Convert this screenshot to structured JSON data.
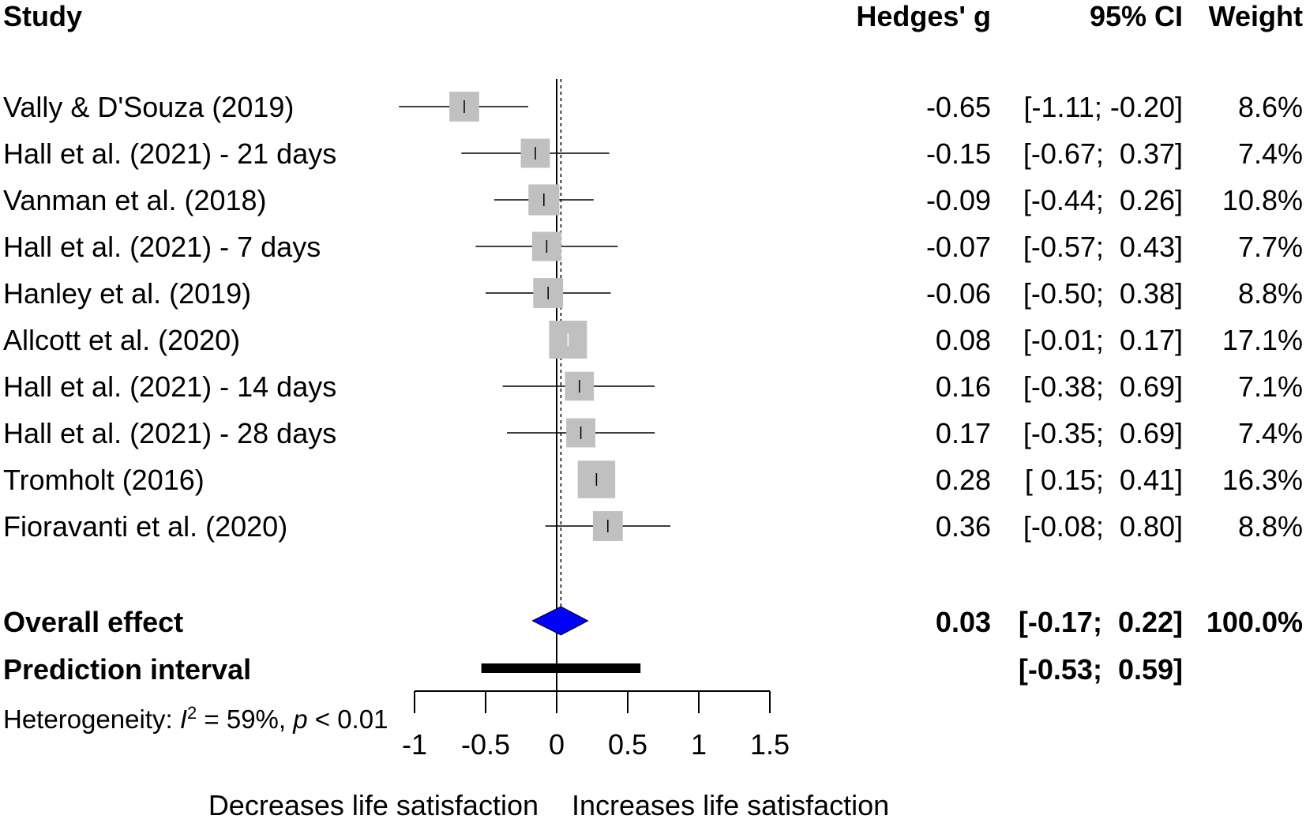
{
  "chart_data": {
    "type": "forest",
    "headers": {
      "study": "Study",
      "effect": "Hedges' g",
      "ci": "95% CI",
      "weight": "Weight"
    },
    "studies": [
      {
        "name": "Vally & D'Souza (2019)",
        "g": -0.65,
        "lo": -1.11,
        "hi": -0.2,
        "weight": 8.6,
        "g_text": "-0.65",
        "ci_text": "[-1.11; -0.20]",
        "weight_text": "8.6%"
      },
      {
        "name": "Hall et al. (2021) - 21 days",
        "g": -0.15,
        "lo": -0.67,
        "hi": 0.37,
        "weight": 7.4,
        "g_text": "-0.15",
        "ci_text": "[-0.67;  0.37]",
        "weight_text": "7.4%"
      },
      {
        "name": "Vanman et al. (2018)",
        "g": -0.09,
        "lo": -0.44,
        "hi": 0.26,
        "weight": 10.8,
        "g_text": "-0.09",
        "ci_text": "[-0.44;  0.26]",
        "weight_text": "10.8%"
      },
      {
        "name": "Hall et al. (2021) - 7 days",
        "g": -0.07,
        "lo": -0.57,
        "hi": 0.43,
        "weight": 7.7,
        "g_text": "-0.07",
        "ci_text": "[-0.57;  0.43]",
        "weight_text": "7.7%"
      },
      {
        "name": "Hanley et al. (2019)",
        "g": -0.06,
        "lo": -0.5,
        "hi": 0.38,
        "weight": 8.8,
        "g_text": "-0.06",
        "ci_text": "[-0.50;  0.38]",
        "weight_text": "8.8%"
      },
      {
        "name": "Allcott et al. (2020)",
        "g": 0.08,
        "lo": -0.01,
        "hi": 0.17,
        "weight": 17.1,
        "g_text": "0.08",
        "ci_text": "[-0.01;  0.17]",
        "weight_text": "17.1%"
      },
      {
        "name": "Hall et al. (2021) - 14 days",
        "g": 0.16,
        "lo": -0.38,
        "hi": 0.69,
        "weight": 7.1,
        "g_text": "0.16",
        "ci_text": "[-0.38;  0.69]",
        "weight_text": "7.1%"
      },
      {
        "name": "Hall et al. (2021) - 28 days",
        "g": 0.17,
        "lo": -0.35,
        "hi": 0.69,
        "weight": 7.4,
        "g_text": "0.17",
        "ci_text": "[-0.35;  0.69]",
        "weight_text": "7.4%"
      },
      {
        "name": "Tromholt (2016)",
        "g": 0.28,
        "lo": 0.15,
        "hi": 0.41,
        "weight": 16.3,
        "g_text": "0.28",
        "ci_text": "[ 0.15;  0.41]",
        "weight_text": "16.3%"
      },
      {
        "name": "Fioravanti et al. (2020)",
        "g": 0.36,
        "lo": -0.08,
        "hi": 0.8,
        "weight": 8.8,
        "g_text": "0.36",
        "ci_text": "[-0.08;  0.80]",
        "weight_text": "8.8%"
      }
    ],
    "overall": {
      "label": "Overall effect",
      "g": 0.03,
      "lo": -0.17,
      "hi": 0.22,
      "g_text": "0.03",
      "ci_text": "[-0.17;  0.22]",
      "weight_text": "100.0%"
    },
    "prediction": {
      "label": "Prediction interval",
      "lo": -0.53,
      "hi": 0.59,
      "ci_text": "[-0.53;  0.59]"
    },
    "heterogeneity": {
      "prefix": "Heterogeneity: ",
      "i_symbol": "I",
      "i_sup": "2",
      "middle": " = 59%, ",
      "p_symbol": "p",
      "suffix": " < 0.01"
    },
    "xaxis": {
      "min": -1,
      "max": 1.5,
      "ticks": [
        -1,
        -0.5,
        0,
        0.5,
        1,
        1.5
      ],
      "tick_labels": [
        "-1",
        "-0.5",
        "0",
        "0.5",
        "1",
        "1.5"
      ]
    },
    "xlabel_left": "Decreases life satisfaction",
    "xlabel_right": "Increases life satisfaction",
    "colors": {
      "box": "#c0c0c0",
      "diamond": "#0000ff",
      "line": "#000000"
    }
  }
}
